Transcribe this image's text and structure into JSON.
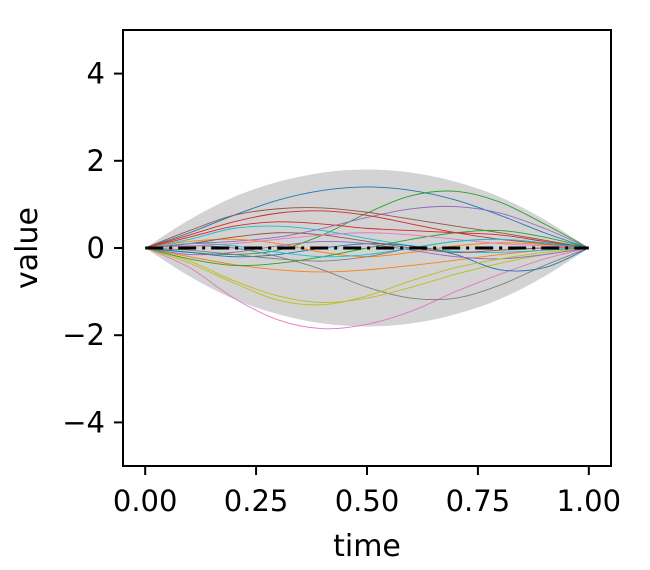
{
  "chart_data": {
    "type": "line",
    "title": "",
    "xlabel": "time",
    "ylabel": "value",
    "xlim": [
      -0.05,
      1.05
    ],
    "ylim": [
      -5,
      5
    ],
    "xticks": [
      0.0,
      0.25,
      0.5,
      0.75,
      1.0
    ],
    "xtick_labels": [
      "0.00",
      "0.25",
      "0.50",
      "0.75",
      "1.00"
    ],
    "yticks": [
      -4,
      -2,
      0,
      2,
      4
    ],
    "ytick_labels": [
      "−4",
      "−2",
      "0",
      "2",
      "4"
    ],
    "grid": false,
    "legend": "none",
    "band": {
      "color": "#d3d3d3",
      "x": [
        0.0,
        0.1,
        0.2,
        0.3,
        0.4,
        0.5,
        0.6,
        0.7,
        0.8,
        0.9,
        1.0
      ],
      "upper": [
        0.0,
        0.65,
        1.17,
        1.52,
        1.73,
        1.8,
        1.73,
        1.52,
        1.17,
        0.65,
        0.0
      ],
      "lower": [
        0.0,
        -0.65,
        -1.17,
        -1.52,
        -1.73,
        -1.8,
        -1.73,
        -1.52,
        -1.17,
        -0.65,
        0.0
      ]
    },
    "mean_line": {
      "color": "#000000",
      "style": "dash-dot",
      "x": [
        0.0,
        1.0
      ],
      "y": [
        0.0,
        0.0
      ]
    },
    "sample_x": [
      0.0,
      0.1,
      0.2,
      0.3,
      0.4,
      0.5,
      0.6,
      0.7,
      0.8,
      0.9,
      1.0
    ],
    "samples": [
      {
        "color": "#1f77b4",
        "y": [
          0,
          0.35,
          0.75,
          1.1,
          1.32,
          1.4,
          1.32,
          1.1,
          0.75,
          0.35,
          0
        ]
      },
      {
        "color": "#ff7f0e",
        "y": [
          0,
          -0.2,
          -0.38,
          -0.5,
          -0.55,
          -0.5,
          -0.4,
          -0.28,
          -0.15,
          -0.05,
          0
        ]
      },
      {
        "color": "#2ca02c",
        "y": [
          0,
          -0.1,
          -0.15,
          -0.05,
          0.3,
          0.8,
          1.2,
          1.3,
          1.05,
          0.55,
          0
        ]
      },
      {
        "color": "#d62728",
        "y": [
          0,
          0.25,
          0.5,
          0.6,
          0.55,
          0.45,
          0.4,
          0.35,
          0.3,
          0.15,
          0
        ]
      },
      {
        "color": "#9467bd",
        "y": [
          0,
          0.1,
          0.15,
          0.25,
          0.45,
          0.7,
          0.9,
          0.95,
          0.8,
          0.45,
          0
        ]
      },
      {
        "color": "#8c564b",
        "y": [
          0,
          0.4,
          0.75,
          0.9,
          0.92,
          0.82,
          0.66,
          0.5,
          0.35,
          0.18,
          0
        ]
      },
      {
        "color": "#e377c2",
        "y": [
          0,
          -0.45,
          -1.15,
          -1.65,
          -1.85,
          -1.75,
          -1.45,
          -1.0,
          -0.6,
          -0.25,
          0
        ]
      },
      {
        "color": "#7f7f7f",
        "y": [
          0,
          0.05,
          0.0,
          -0.2,
          -0.5,
          -0.9,
          -1.15,
          -1.15,
          -0.85,
          -0.4,
          0
        ]
      },
      {
        "color": "#bcbd22",
        "y": [
          0,
          -0.3,
          -0.75,
          -1.1,
          -1.25,
          -1.15,
          -0.9,
          -0.6,
          -0.35,
          -0.15,
          0
        ]
      },
      {
        "color": "#17becf",
        "y": [
          0,
          0.2,
          0.45,
          0.5,
          0.4,
          0.22,
          0.05,
          -0.08,
          -0.1,
          -0.05,
          0
        ]
      },
      {
        "color": "#1f77b4",
        "y": [
          0,
          -0.1,
          -0.2,
          -0.15,
          0.0,
          0.1,
          0.05,
          -0.15,
          -0.5,
          -0.45,
          0
        ]
      },
      {
        "color": "#ff7f0e",
        "y": [
          0,
          0.15,
          0.2,
          0.1,
          -0.1,
          -0.2,
          -0.1,
          0.05,
          0.12,
          0.08,
          0
        ]
      },
      {
        "color": "#2ca02c",
        "y": [
          0,
          -0.25,
          -0.4,
          -0.35,
          -0.2,
          0.0,
          0.2,
          0.35,
          0.4,
          0.25,
          0
        ]
      },
      {
        "color": "#d62728",
        "y": [
          0,
          0.3,
          0.6,
          0.8,
          0.85,
          0.75,
          0.55,
          0.35,
          0.2,
          0.1,
          0
        ]
      },
      {
        "color": "#9467bd",
        "y": [
          0,
          -0.15,
          -0.1,
          0.05,
          0.15,
          0.1,
          -0.05,
          -0.2,
          -0.25,
          -0.15,
          0
        ]
      },
      {
        "color": "#8c564b",
        "y": [
          0,
          0.1,
          0.25,
          0.35,
          0.3,
          0.15,
          0.0,
          -0.1,
          -0.05,
          0.0,
          0
        ]
      },
      {
        "color": "#e377c2",
        "y": [
          0,
          0.05,
          0.1,
          0.2,
          0.3,
          0.35,
          0.3,
          0.2,
          0.1,
          0.05,
          0
        ]
      },
      {
        "color": "#7f7f7f",
        "y": [
          0,
          -0.05,
          -0.15,
          -0.25,
          -0.3,
          -0.2,
          0.0,
          0.15,
          0.2,
          0.1,
          0
        ]
      },
      {
        "color": "#bcbd22",
        "y": [
          0,
          -0.35,
          -0.8,
          -1.2,
          -1.3,
          -1.1,
          -0.75,
          -0.45,
          -0.25,
          -0.1,
          0
        ]
      },
      {
        "color": "#17becf",
        "y": [
          0,
          0.1,
          0.05,
          -0.1,
          -0.2,
          -0.15,
          0.0,
          0.15,
          0.2,
          0.12,
          0
        ]
      }
    ]
  }
}
